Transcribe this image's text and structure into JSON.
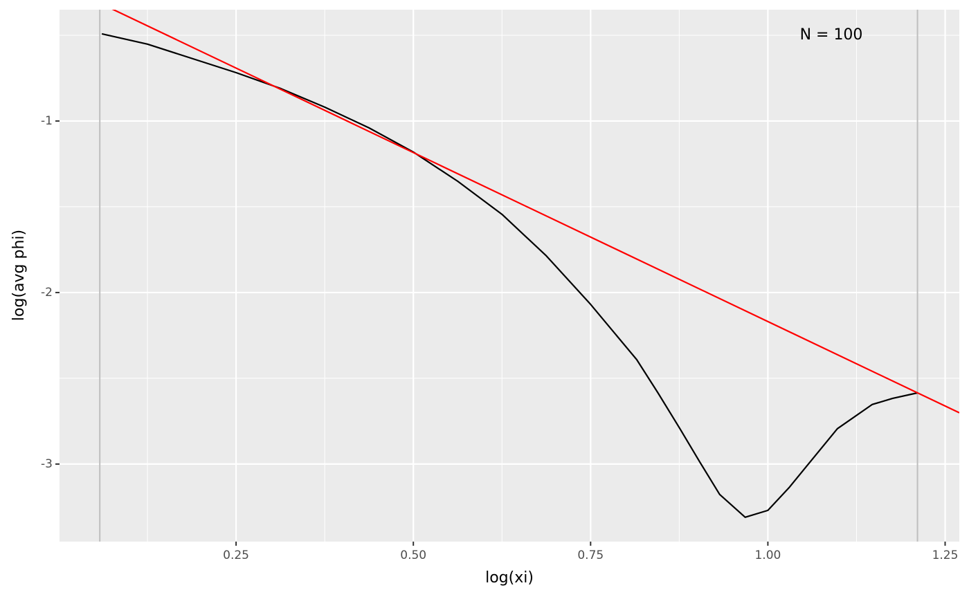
{
  "chart_data": {
    "type": "line",
    "xlabel": "log(xi)",
    "ylabel": "log(avg phi)",
    "annotation": "N = 100",
    "xlim": [
      0.001,
      1.27
    ],
    "ylim": [
      -3.452,
      -0.351
    ],
    "xticks": [
      {
        "value": 0.25,
        "label": "0.25"
      },
      {
        "value": 0.5,
        "label": "0.50"
      },
      {
        "value": 0.75,
        "label": "0.75"
      },
      {
        "value": 1,
        "label": "1.00"
      },
      {
        "value": 1.25,
        "label": "1.25"
      }
    ],
    "yticks": [
      -1,
      -2,
      -3
    ],
    "xminor": [
      0.125,
      0.375,
      0.625,
      0.875,
      1.125
    ],
    "yminor": [
      -0.5,
      -1.5,
      -2.5
    ],
    "grid": true,
    "vlines": [
      0.0578,
      1.211
    ],
    "vline_color": "#bebebe",
    "series": [
      {
        "color": "#000000",
        "x": [
          0.0607,
          0.125,
          0.25,
          0.3125,
          0.375,
          0.4375,
          0.5,
          0.5625,
          0.625,
          0.6875,
          0.75,
          0.815,
          0.845,
          0.876,
          0.904,
          0.932,
          0.968,
          1.0,
          1.03,
          1.05,
          1.098,
          1.147,
          1.176,
          1.211
        ],
        "values": [
          -0.492,
          -0.552,
          -0.718,
          -0.81,
          -0.919,
          -1.04,
          -1.181,
          -1.351,
          -1.544,
          -1.786,
          -2.069,
          -2.391,
          -2.585,
          -2.794,
          -2.988,
          -3.177,
          -3.31,
          -3.27,
          -3.137,
          -3.036,
          -2.794,
          -2.653,
          -2.617,
          -2.585
        ]
      },
      {
        "color": "#ff0000",
        "x": [
          0.001,
          1.27
        ],
        "values": [
          -0.201,
          -2.701
        ]
      }
    ]
  }
}
